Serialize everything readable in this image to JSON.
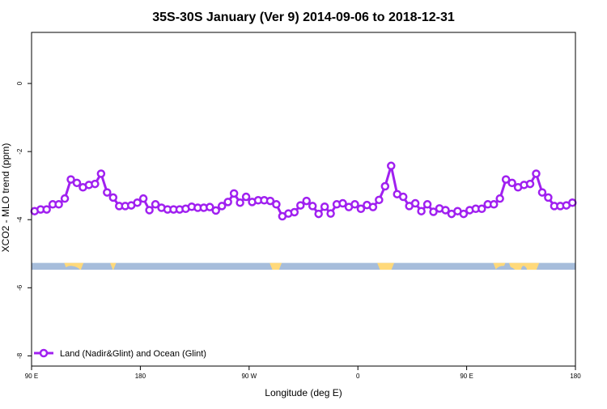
{
  "chart_data": {
    "type": "line",
    "title": "35S-30S January (Ver 9)   2014-09-06 to 2018-12-31",
    "xlabel": "Longitude (deg E)",
    "ylabel": "XCO2 - MLO trend (ppm)",
    "xlim": [
      90,
      540
    ],
    "ylim": [
      -8.3,
      1.5
    ],
    "x_ticks": [
      {
        "value": 90,
        "label": "90 E"
      },
      {
        "value": 180,
        "label": "180"
      },
      {
        "value": 270,
        "label": "90 W"
      },
      {
        "value": 360,
        "label": "0"
      },
      {
        "value": 450,
        "label": "90 E"
      },
      {
        "value": 540,
        "label": "180"
      }
    ],
    "y_ticks": [
      0,
      -2,
      -4,
      -6,
      -8
    ],
    "legend": {
      "position": "bottom-left",
      "label": "Land (Nadir&Glint) and Ocean (Glint)"
    },
    "colors": {
      "series": "#a020f0",
      "ocean": "#a6bddb",
      "land": "#ffd97a"
    },
    "land_ocean_strip": {
      "y_range": [
        -5.47,
        -5.27
      ],
      "land_segments": [
        [
          117,
          133
        ],
        [
          155,
          160
        ],
        [
          287,
          297
        ],
        [
          376,
          390
        ],
        [
          472,
          482
        ],
        [
          485,
          510
        ]
      ],
      "ocean_bumps": [
        [
          117,
          130
        ],
        [
          474,
          490
        ],
        [
          495,
          500
        ]
      ]
    },
    "series": [
      {
        "name": "Land (Nadir&Glint) and Ocean (Glint)",
        "x": [
          92.5,
          97.5,
          102.5,
          107.5,
          112.5,
          117.5,
          122.5,
          127.5,
          132.5,
          137.5,
          142.5,
          147.5,
          152.5,
          157.5,
          162.5,
          167.5,
          172.5,
          177.5,
          182.5,
          187.5,
          192.5,
          197.5,
          202.5,
          207.5,
          212.5,
          217.5,
          222.5,
          227.5,
          232.5,
          237.5,
          242.5,
          247.5,
          252.5,
          257.5,
          262.5,
          267.5,
          272.5,
          277.5,
          282.5,
          287.5,
          292.5,
          297.5,
          302.5,
          307.5,
          312.5,
          317.5,
          322.5,
          327.5,
          332.5,
          337.5,
          342.5,
          347.5,
          352.5,
          357.5,
          362.5,
          367.5,
          372.5,
          377.5,
          382.5,
          387.5,
          392.5,
          397.5,
          402.5,
          407.5,
          412.5,
          417.5,
          422.5,
          427.5,
          432.5,
          437.5,
          442.5,
          447.5,
          452.5,
          457.5,
          462.5,
          467.5,
          472.5,
          477.5,
          482.5,
          487.5,
          492.5,
          497.5,
          502.5,
          507.5,
          512.5,
          517.5,
          522.5,
          527.5,
          532.5,
          537.5
        ],
        "values": [
          -3.75,
          -3.7,
          -3.7,
          -3.55,
          -3.55,
          -3.38,
          -2.82,
          -2.92,
          -3.05,
          -2.98,
          -2.95,
          -2.65,
          -3.2,
          -3.35,
          -3.6,
          -3.6,
          -3.58,
          -3.5,
          -3.38,
          -3.72,
          -3.55,
          -3.65,
          -3.7,
          -3.7,
          -3.7,
          -3.68,
          -3.62,
          -3.65,
          -3.65,
          -3.63,
          -3.73,
          -3.6,
          -3.48,
          -3.23,
          -3.5,
          -3.33,
          -3.48,
          -3.43,
          -3.43,
          -3.45,
          -3.55,
          -3.9,
          -3.82,
          -3.78,
          -3.58,
          -3.45,
          -3.6,
          -3.83,
          -3.62,
          -3.82,
          -3.55,
          -3.52,
          -3.63,
          -3.55,
          -3.68,
          -3.57,
          -3.63,
          -3.42,
          -3.02,
          -2.42,
          -3.25,
          -3.33,
          -3.6,
          -3.52,
          -3.75,
          -3.55,
          -3.77,
          -3.67,
          -3.72,
          -3.83,
          -3.75,
          -3.83,
          -3.72,
          -3.68,
          -3.68,
          -3.55,
          -3.55,
          -3.38,
          -2.82,
          -2.92,
          -3.05,
          -2.98,
          -2.95,
          -2.65,
          -3.2,
          -3.35,
          -3.6,
          -3.6,
          -3.58,
          -3.5
        ]
      }
    ]
  }
}
